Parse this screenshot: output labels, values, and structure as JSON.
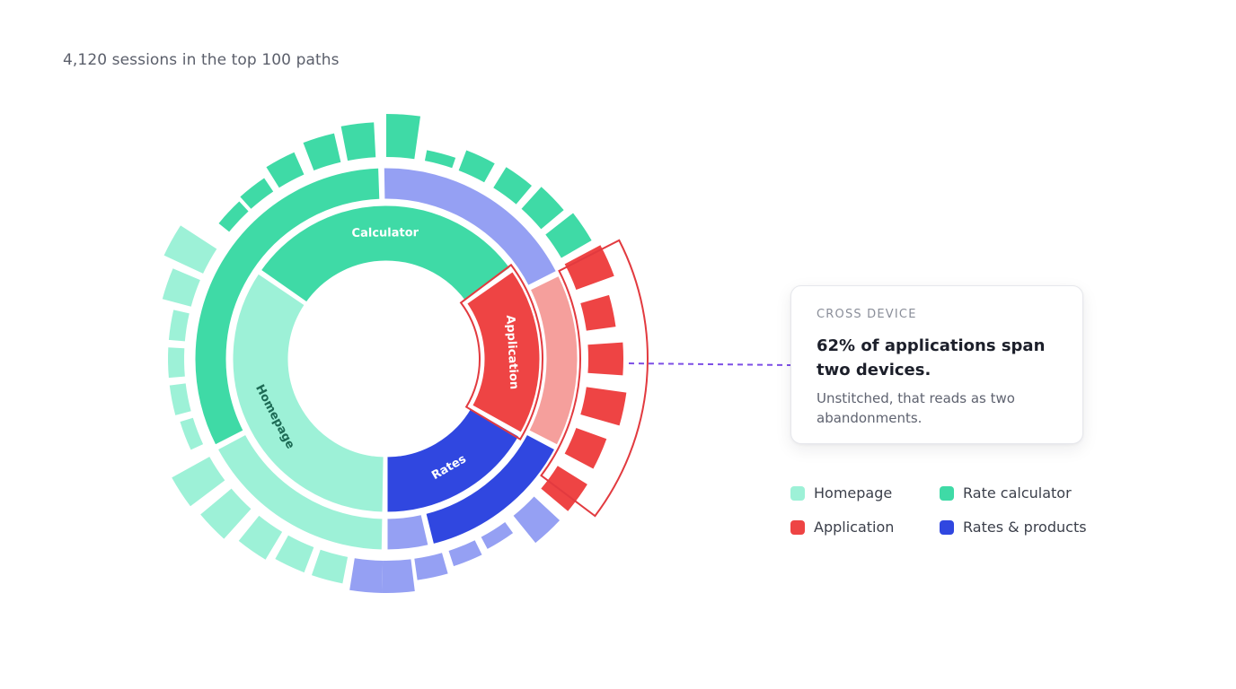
{
  "subtitle": "4,120 sessions in the top 100 paths",
  "callout": {
    "eyebrow": "CROSS DEVICE",
    "headline": "62% of applications span two devices.",
    "body": "Unstitched, that reads as two abandonments."
  },
  "legend": [
    {
      "label": "Homepage",
      "color": "#9df1d7"
    },
    {
      "label": "Rate calculator",
      "color": "#3fdaa6"
    },
    {
      "label": "Application",
      "color": "#ee4444"
    },
    {
      "label": "Rates & products",
      "color": "#3047e0"
    }
  ],
  "colors": {
    "homepage": "#9df1d7",
    "calculator": "#3fdaa6",
    "application": "#ee4444",
    "application_light": "#f59f9c",
    "rates": "#3047e0",
    "rates_light": "#95a0f3",
    "highlight": "#e23a3f",
    "leader": "#7d4fe6"
  },
  "chart_data": {
    "type": "sunburst",
    "title": "4,120 sessions in the top 100 paths",
    "highlight": "Application",
    "rings": {
      "inner": [
        {
          "name": "Homepage",
          "label": "Homepage",
          "color": "#9df1d7",
          "start_deg": 181,
          "end_deg": 304
        },
        {
          "name": "Calculator",
          "label": "Calculator",
          "color": "#3fdaa6",
          "start_deg": 305,
          "end_deg": 414
        },
        {
          "name": "Application",
          "label": "Application",
          "color": "#ee4444",
          "start_deg": 415,
          "end_deg": 479
        },
        {
          "name": "Rates",
          "label": "Rates",
          "color": "#3047e0",
          "start_deg": 480,
          "end_deg": 540
        }
      ],
      "middle": [
        {
          "parent": "Homepage",
          "color": "#9df1d7",
          "start_deg": 181,
          "end_deg": 242
        },
        {
          "parent": "Calculator",
          "color": "#3fdaa6",
          "start_deg": 243,
          "end_deg": 358
        },
        {
          "parent": "Calculator",
          "color": "#95a0f3",
          "start_deg": 359,
          "end_deg": 423
        },
        {
          "parent": "Application",
          "color": "#f59f9c",
          "start_deg": 424,
          "end_deg": 477
        },
        {
          "parent": "Rates",
          "color": "#3047e0",
          "start_deg": 478,
          "end_deg": 526
        },
        {
          "parent": "Rates",
          "color": "#95a0f3",
          "start_deg": 527,
          "end_deg": 540
        }
      ]
    },
    "outer_bars": [
      {
        "angle_deg": 185,
        "length": 0.6,
        "color": "#95a0f3"
      },
      {
        "angle_deg": 195,
        "length": 0.5,
        "color": "#9df1d7"
      },
      {
        "angle_deg": 205,
        "length": 0.5,
        "color": "#9df1d7"
      },
      {
        "angle_deg": 215,
        "length": 0.6,
        "color": "#9df1d7"
      },
      {
        "angle_deg": 226,
        "length": 0.75,
        "color": "#9df1d7"
      },
      {
        "angle_deg": 237,
        "length": 0.8,
        "color": "#9df1d7"
      },
      {
        "angle_deg": 249,
        "length": 0.25,
        "color": "#9df1d7"
      },
      {
        "angle_deg": 259,
        "length": 0.3,
        "color": "#9df1d7"
      },
      {
        "angle_deg": 269,
        "length": 0.3,
        "color": "#9df1d7"
      },
      {
        "angle_deg": 279,
        "length": 0.3,
        "color": "#9df1d7"
      },
      {
        "angle_deg": 289,
        "length": 0.55,
        "color": "#9df1d7"
      },
      {
        "angle_deg": 299,
        "length": 0.8,
        "color": "#9df1d7"
      },
      {
        "angle_deg": 313,
        "length": 0.25,
        "color": "#3fdaa6"
      },
      {
        "angle_deg": 322,
        "length": 0.3,
        "color": "#3fdaa6"
      },
      {
        "angle_deg": 332,
        "length": 0.45,
        "color": "#3fdaa6"
      },
      {
        "angle_deg": 343,
        "length": 0.55,
        "color": "#3fdaa6"
      },
      {
        "angle_deg": 353,
        "length": 0.65,
        "color": "#3fdaa6"
      },
      {
        "angle_deg": 364,
        "length": 0.8,
        "color": "#3fdaa6"
      },
      {
        "angle_deg": 375,
        "length": 0.2,
        "color": "#3fdaa6"
      },
      {
        "angle_deg": 385,
        "length": 0.4,
        "color": "#3fdaa6"
      },
      {
        "angle_deg": 396,
        "length": 0.45,
        "color": "#3fdaa6"
      },
      {
        "angle_deg": 406,
        "length": 0.55,
        "color": "#3fdaa6"
      },
      {
        "angle_deg": 416,
        "length": 0.65,
        "color": "#3fdaa6"
      },
      {
        "angle_deg": 426,
        "length": 0.75,
        "color": "#ee4444"
      },
      {
        "angle_deg": 438,
        "length": 0.55,
        "color": "#ee4444"
      },
      {
        "angle_deg": 450,
        "length": 0.65,
        "color": "#ee4444"
      },
      {
        "angle_deg": 462,
        "length": 0.75,
        "color": "#ee4444"
      },
      {
        "angle_deg": 474,
        "length": 0.6,
        "color": "#ee4444"
      },
      {
        "angle_deg": 486,
        "length": 0.65,
        "color": "#ee4444"
      },
      {
        "angle_deg": 497,
        "length": 0.65,
        "color": "#95a0f3"
      },
      {
        "angle_deg": 508,
        "length": 0.25,
        "color": "#95a0f3"
      },
      {
        "angle_deg": 518,
        "length": 0.3,
        "color": "#95a0f3"
      },
      {
        "angle_deg": 528,
        "length": 0.4,
        "color": "#95a0f3"
      },
      {
        "angle_deg": 537,
        "length": 0.6,
        "color": "#95a0f3"
      }
    ]
  }
}
